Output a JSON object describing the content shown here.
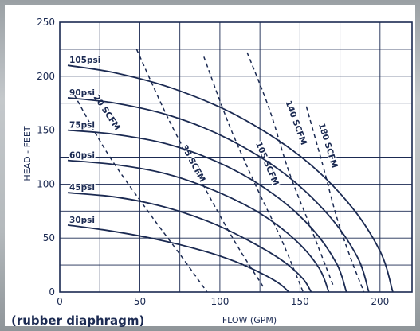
{
  "chart_data": {
    "type": "line",
    "title": "",
    "xlabel": "FLOW (GPM)",
    "ylabel": "HEAD - FEET",
    "caption": "(rubber diaphragm)",
    "xlim": [
      0,
      220
    ],
    "ylim": [
      0,
      250
    ],
    "xticks": [
      0,
      50,
      100,
      150,
      200
    ],
    "yticks": [
      0,
      50,
      100,
      150,
      200,
      250
    ],
    "grid": true,
    "series": [
      {
        "name": "30psi",
        "points": [
          [
            5,
            62
          ],
          [
            30,
            57
          ],
          [
            60,
            49
          ],
          [
            90,
            38
          ],
          [
            110,
            28
          ],
          [
            125,
            18
          ],
          [
            137,
            8
          ],
          [
            143,
            0
          ]
        ]
      },
      {
        "name": "45psi",
        "points": [
          [
            5,
            92
          ],
          [
            35,
            88
          ],
          [
            65,
            79
          ],
          [
            95,
            64
          ],
          [
            120,
            46
          ],
          [
            140,
            28
          ],
          [
            152,
            12
          ],
          [
            157,
            0
          ]
        ]
      },
      {
        "name": "60psi",
        "points": [
          [
            5,
            122
          ],
          [
            35,
            118
          ],
          [
            65,
            110
          ],
          [
            95,
            95
          ],
          [
            125,
            73
          ],
          [
            148,
            47
          ],
          [
            162,
            22
          ],
          [
            168,
            0
          ]
        ]
      },
      {
        "name": "75psi",
        "points": [
          [
            5,
            150
          ],
          [
            35,
            146
          ],
          [
            70,
            136
          ],
          [
            105,
            116
          ],
          [
            135,
            89
          ],
          [
            158,
            58
          ],
          [
            173,
            26
          ],
          [
            179,
            0
          ]
        ]
      },
      {
        "name": "90psi",
        "points": [
          [
            5,
            180
          ],
          [
            35,
            175
          ],
          [
            70,
            163
          ],
          [
            105,
            142
          ],
          [
            140,
            110
          ],
          [
            168,
            71
          ],
          [
            186,
            32
          ],
          [
            193,
            0
          ]
        ]
      },
      {
        "name": "105psi",
        "points": [
          [
            5,
            210
          ],
          [
            35,
            203
          ],
          [
            70,
            189
          ],
          [
            110,
            164
          ],
          [
            150,
            126
          ],
          [
            180,
            83
          ],
          [
            200,
            38
          ],
          [
            208,
            0
          ]
        ]
      }
    ],
    "air_consumption": [
      {
        "name": "20 SCFM",
        "points": [
          [
            9,
            183
          ],
          [
            30,
            128
          ],
          [
            55,
            75
          ],
          [
            75,
            35
          ],
          [
            92,
            0
          ]
        ]
      },
      {
        "name": "35 SCFM",
        "points": [
          [
            48,
            225
          ],
          [
            68,
            160
          ],
          [
            90,
            98
          ],
          [
            110,
            45
          ],
          [
            127,
            5
          ]
        ]
      },
      {
        "name": "105 SCFM",
        "points": [
          [
            90,
            218
          ],
          [
            106,
            154
          ],
          [
            122,
            100
          ],
          [
            138,
            50
          ],
          [
            152,
            0
          ]
        ]
      },
      {
        "name": "140 SCFM",
        "points": [
          [
            117,
            222
          ],
          [
            131,
            169
          ],
          [
            143,
            112
          ],
          [
            158,
            55
          ],
          [
            171,
            5
          ]
        ]
      },
      {
        "name": "180 SCFM",
        "points": [
          [
            154,
            172
          ],
          [
            164,
            119
          ],
          [
            173,
            69
          ],
          [
            182,
            30
          ],
          [
            190,
            0
          ]
        ]
      }
    ]
  }
}
